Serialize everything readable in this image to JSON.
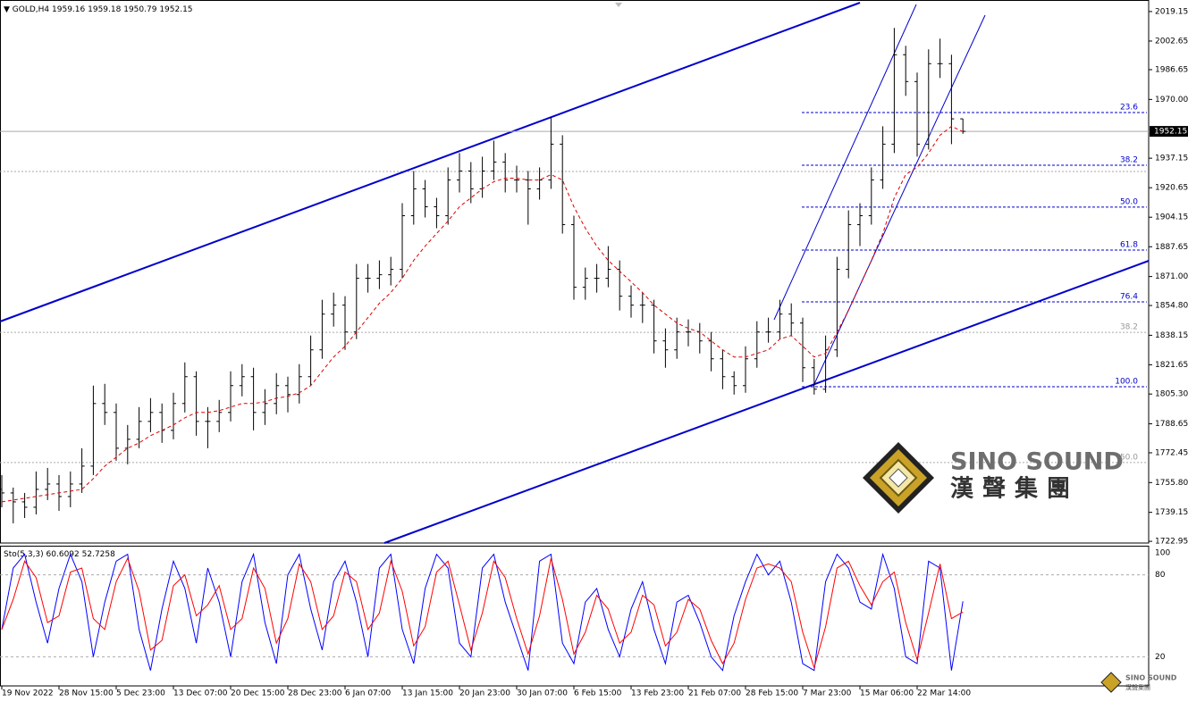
{
  "chart_data": {
    "type": "ohlc",
    "symbol": "GOLD,H4",
    "ylim": [
      1722,
      2024.6
    ],
    "yticks": [
      2019.15,
      2002.65,
      1986.65,
      {
        "value": 1970,
        "label": "1970.00"
      },
      1937.15,
      1920.65,
      1904.15,
      1887.65,
      {
        "value": 1871,
        "label": "1871.00"
      },
      {
        "value": 1854.8,
        "label": "1854.80"
      },
      1838.15,
      1821.65,
      {
        "value": 1805.3,
        "label": "1805.30"
      },
      1788.65,
      1772.45,
      {
        "value": 1755.8,
        "label": "1755.80"
      },
      1739.15,
      1722.95
    ],
    "xlim": [
      -0.15625,
      100.234375
    ],
    "xticks": [
      {
        "value": 0,
        "label": "19 Nov 2022"
      },
      {
        "value": 5,
        "label": "28 Nov 15:00"
      },
      {
        "value": 10,
        "label": "5 Dec 23:00"
      },
      {
        "value": 15,
        "label": "13 Dec 07:00"
      },
      {
        "value": 20,
        "label": "20 Dec 15:00"
      },
      {
        "value": 25,
        "label": "28 Dec 23:00"
      },
      {
        "value": 30,
        "label": "6 Jan 07:00"
      },
      {
        "value": 35,
        "label": "13 Jan 15:00"
      },
      {
        "value": 40,
        "label": "20 Jan 23:00"
      },
      {
        "value": 45,
        "label": "30 Jan 07:00"
      },
      {
        "value": 50,
        "label": "6 Feb 15:00"
      },
      {
        "value": 55,
        "label": "13 Feb 23:00"
      },
      {
        "value": 60,
        "label": "21 Feb 07:00"
      },
      {
        "value": 65,
        "label": "28 Feb 15:00"
      },
      {
        "value": 70,
        "label": "7 Mar 23:00"
      },
      {
        "value": 75,
        "label": "15 Mar 06:00"
      },
      {
        "value": 80,
        "label": "22 Mar 14:00"
      }
    ],
    "color": "#000000",
    "ohlc": [
      [
        1752,
        1760,
        1742,
        1750
      ],
      [
        1750,
        1753,
        1733,
        1745
      ],
      [
        1745,
        1750,
        1736,
        1742
      ],
      [
        1742,
        1762,
        1738,
        1752
      ],
      [
        1752,
        1764,
        1746,
        1755
      ],
      [
        1755,
        1760,
        1740,
        1748
      ],
      [
        1748,
        1762,
        1742,
        1755
      ],
      [
        1755,
        1775,
        1750,
        1765
      ],
      [
        1765,
        1810,
        1760,
        1800
      ],
      [
        1800,
        1811,
        1788,
        1795
      ],
      [
        1795,
        1800,
        1768,
        1775
      ],
      [
        1775,
        1788,
        1766,
        1780
      ],
      [
        1780,
        1798,
        1775,
        1790
      ],
      [
        1790,
        1803,
        1784,
        1795
      ],
      [
        1795,
        1800,
        1778,
        1785
      ],
      [
        1785,
        1806,
        1780,
        1800
      ],
      [
        1800,
        1823,
        1795,
        1815
      ],
      [
        1815,
        1818,
        1782,
        1790
      ],
      [
        1790,
        1798,
        1775,
        1790
      ],
      [
        1790,
        1802,
        1784,
        1795
      ],
      [
        1795,
        1818,
        1790,
        1810
      ],
      [
        1810,
        1822,
        1804,
        1815
      ],
      [
        1815,
        1820,
        1785,
        1795
      ],
      [
        1795,
        1808,
        1788,
        1800
      ],
      [
        1800,
        1817,
        1794,
        1810
      ],
      [
        1810,
        1815,
        1795,
        1805
      ],
      [
        1805,
        1822,
        1800,
        1815
      ],
      [
        1815,
        1838,
        1810,
        1830
      ],
      [
        1830,
        1858,
        1825,
        1850
      ],
      [
        1850,
        1862,
        1843,
        1855
      ],
      [
        1855,
        1860,
        1830,
        1840
      ],
      [
        1840,
        1878,
        1836,
        1870
      ],
      [
        1870,
        1878,
        1862,
        1870
      ],
      [
        1870,
        1880,
        1864,
        1872
      ],
      [
        1872,
        1882,
        1866,
        1875
      ],
      [
        1875,
        1912,
        1870,
        1905
      ],
      [
        1905,
        1930,
        1900,
        1920
      ],
      [
        1920,
        1925,
        1904,
        1910
      ],
      [
        1910,
        1915,
        1898,
        1905
      ],
      [
        1905,
        1932,
        1900,
        1925
      ],
      [
        1925,
        1940,
        1918,
        1930
      ],
      [
        1930,
        1935,
        1912,
        1920
      ],
      [
        1920,
        1938,
        1915,
        1930
      ],
      [
        1930,
        1947,
        1925,
        1935
      ],
      [
        1935,
        1940,
        1918,
        1925
      ],
      [
        1925,
        1933,
        1918,
        1925
      ],
      [
        1925,
        1930,
        1900,
        1920
      ],
      [
        1920,
        1932,
        1914,
        1925
      ],
      [
        1925,
        1960,
        1920,
        1945
      ],
      [
        1945,
        1950,
        1895,
        1900
      ],
      [
        1900,
        1905,
        1858,
        1865
      ],
      [
        1865,
        1876,
        1858,
        1870
      ],
      [
        1870,
        1878,
        1862,
        1870
      ],
      [
        1870,
        1888,
        1865,
        1875
      ],
      [
        1875,
        1880,
        1852,
        1860
      ],
      [
        1860,
        1866,
        1848,
        1855
      ],
      [
        1855,
        1862,
        1845,
        1855
      ],
      [
        1855,
        1858,
        1828,
        1835
      ],
      [
        1835,
        1842,
        1820,
        1830
      ],
      [
        1830,
        1848,
        1825,
        1840
      ],
      [
        1840,
        1847,
        1832,
        1840
      ],
      [
        1840,
        1845,
        1828,
        1835
      ],
      [
        1835,
        1840,
        1818,
        1825
      ],
      [
        1825,
        1830,
        1808,
        1815
      ],
      [
        1815,
        1818,
        1805,
        1810
      ],
      [
        1810,
        1832,
        1806,
        1825
      ],
      [
        1825,
        1846,
        1820,
        1840
      ],
      [
        1840,
        1848,
        1834,
        1840
      ],
      [
        1840,
        1858,
        1836,
        1850
      ],
      [
        1850,
        1856,
        1838,
        1845
      ],
      [
        1845,
        1848,
        1812,
        1820
      ],
      [
        1820,
        1825,
        1805,
        1808
      ],
      [
        1808,
        1838,
        1806,
        1830
      ],
      [
        1830,
        1882,
        1826,
        1875
      ],
      [
        1875,
        1908,
        1870,
        1900
      ],
      [
        1900,
        1912,
        1888,
        1905
      ],
      [
        1905,
        1932,
        1900,
        1925
      ],
      [
        1925,
        1955,
        1920,
        1945
      ],
      [
        1945,
        2010,
        1940,
        1995
      ],
      [
        1995,
        2000,
        1972,
        1980
      ],
      [
        1980,
        1985,
        1938,
        1945
      ],
      [
        1945,
        1998,
        1942,
        1990
      ],
      [
        1990,
        2004,
        1982,
        1990
      ],
      [
        1990,
        1995,
        1945,
        1959.16
      ],
      [
        1959.16,
        1959.18,
        1950.79,
        1952.15
      ]
    ],
    "ma": {
      "color": "#dd0000",
      "values": [
        1745,
        1746,
        1747,
        1748,
        1749,
        1750,
        1751,
        1752,
        1758,
        1765,
        1770,
        1775,
        1778,
        1782,
        1785,
        1788,
        1792,
        1795,
        1795,
        1796,
        1798,
        1800,
        1800,
        1801,
        1803,
        1804,
        1806,
        1810,
        1818,
        1826,
        1832,
        1840,
        1848,
        1856,
        1862,
        1870,
        1880,
        1888,
        1895,
        1902,
        1910,
        1915,
        1920,
        1924,
        1926,
        1926,
        1925,
        1925,
        1928,
        1925,
        1910,
        1898,
        1888,
        1880,
        1874,
        1868,
        1862,
        1855,
        1850,
        1845,
        1842,
        1840,
        1835,
        1830,
        1826,
        1826,
        1828,
        1830,
        1836,
        1838,
        1832,
        1826,
        1828,
        1840,
        1852,
        1866,
        1880,
        1895,
        1915,
        1928,
        1932,
        1940,
        1950,
        1955,
        1952
      ]
    },
    "fib_color": "#0000cc",
    "fib_levels": [
      {
        "label": "23.6",
        "value": 1962.7
      },
      {
        "label": "38.2",
        "value": 1933.2
      },
      {
        "label": "50.0",
        "value": 1909.8
      },
      {
        "label": "61.8",
        "value": 1885.8
      },
      {
        "label": "76.4",
        "value": 1856.8
      },
      {
        "label": "100.0",
        "value": 1809.4
      }
    ],
    "fib_levels_old": [
      {
        "label": null,
        "value": 1929.7
      },
      {
        "label": "38.2",
        "value": 1839.8
      },
      {
        "label": "50.0",
        "value": 1767.0
      }
    ],
    "stochastic": {
      "title": "Sto(5,3,3)",
      "ylim": [
        0,
        100
      ],
      "yticks": [
        20,
        80,
        100
      ],
      "series": [
        {
          "color": "#0000ff",
          "values": [
            40,
            85,
            95,
            60,
            30,
            70,
            95,
            75,
            20,
            60,
            90,
            95,
            40,
            10,
            55,
            90,
            70,
            30,
            85,
            60,
            20,
            75,
            95,
            45,
            15,
            80,
            95,
            55,
            25,
            75,
            90,
            60,
            20,
            85,
            95,
            40,
            15,
            70,
            95,
            85,
            30,
            20,
            85,
            95,
            60,
            35,
            10,
            90,
            95,
            30,
            15,
            60,
            70,
            40,
            20,
            55,
            75,
            40,
            15,
            60,
            65,
            45,
            20,
            10,
            50,
            75,
            95,
            80,
            90,
            60,
            15,
            10,
            75,
            95,
            85,
            60,
            55,
            95,
            70,
            20,
            15,
            90,
            85,
            10,
            60.6092
          ]
        },
        {
          "color": "#ff0000",
          "values": [
            40,
            62,
            90,
            78,
            45,
            50,
            82,
            85,
            48,
            40,
            75,
            92,
            68,
            25,
            32,
            72,
            80,
            50,
            58,
            72,
            40,
            48,
            85,
            70,
            30,
            48,
            88,
            75,
            40,
            50,
            82,
            75,
            40,
            52,
            90,
            68,
            28,
            42,
            82,
            90,
            58,
            25,
            52,
            90,
            78,
            48,
            22,
            50,
            92,
            62,
            22,
            38,
            65,
            55,
            30,
            38,
            65,
            58,
            28,
            38,
            62,
            55,
            32,
            15,
            30,
            62,
            85,
            88,
            85,
            75,
            38,
            12,
            42,
            85,
            90,
            72,
            58,
            75,
            82,
            45,
            18,
            52,
            88,
            48,
            52.7258
          ]
        }
      ]
    },
    "logo": {
      "name": "SINO SOUND",
      "chinese": "漢聲集團",
      "small_name": "SINO SOUND",
      "small_chinese": "漢聲集團"
    }
  }
}
